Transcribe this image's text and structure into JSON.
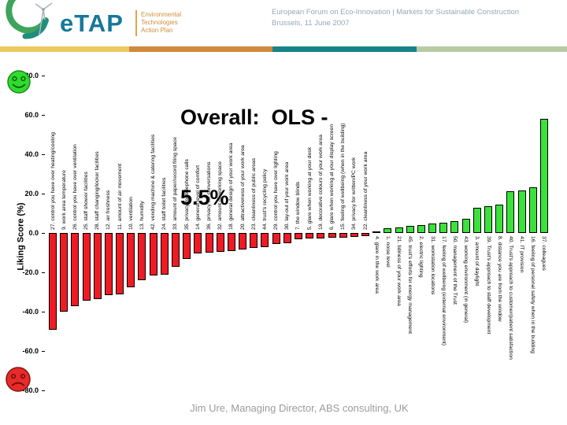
{
  "header": {
    "logo": {
      "wordmark": "eTAP",
      "tagline": [
        "Environmental",
        "Technologies",
        "Action Plan"
      ]
    },
    "event_line1": "European Forum on Eco-Innovation | Markets for Sustainable Construction",
    "event_line2": "Brussels, 11 June 2007",
    "stripe_segments": [
      {
        "color": "#EDC85E",
        "width": 164
      },
      {
        "color": "#D0893B",
        "width": 182
      },
      {
        "color": "#17828C",
        "width": 183
      },
      {
        "color": "#B6CBA4",
        "width": 191
      }
    ]
  },
  "title": {
    "line1": "Overall:  OLS -",
    "line2": "5.5%"
  },
  "footer": "Jim Ure, Managing Director, ABS consulting, UK",
  "chart_data": {
    "type": "bar",
    "title": "Overall:  OLS - 5.5%",
    "ylabel": "Liking Score (%)",
    "ylim": [
      -80,
      80
    ],
    "grid": false,
    "colors": {
      "negative": "#EE1B24",
      "positive": "#3BE23B"
    },
    "yticks": [
      {
        "label": "80.0",
        "value": 80
      },
      {
        "label": "60.0",
        "value": 60
      },
      {
        "label": "40.0",
        "value": 40
      },
      {
        "label": "20.0",
        "value": 20
      },
      {
        "label": "0.0",
        "value": 0
      },
      {
        "label": "-20.0",
        "value": -20
      },
      {
        "label": "-40.0",
        "value": -40
      },
      {
        "label": "-60.0",
        "value": -60
      },
      {
        "label": "-80.0",
        "value": -80
      }
    ],
    "bars": [
      {
        "label": "27. control you have over heating/cooling",
        "value": -49
      },
      {
        "label": "9. work area temperature",
        "value": -40
      },
      {
        "label": "26. control you have over ventilation",
        "value": -37
      },
      {
        "label": "25. staff shower facilities",
        "value": -34.5
      },
      {
        "label": "28. staff changing/locker facilities",
        "value": -33.5
      },
      {
        "label": "12. air freshness",
        "value": -31.5
      },
      {
        "label": "11. amount of air movement",
        "value": -31
      },
      {
        "label": "10. ventilation",
        "value": -27.5
      },
      {
        "label": "13. humidity",
        "value": -24
      },
      {
        "label": "42. vending machine & catering facilities",
        "value": -21.5
      },
      {
        "label": "24. staff toilet facilities",
        "value": -21
      },
      {
        "label": "33. amount of paper/record filing space",
        "value": -17
      },
      {
        "label": "35. privacy for telephone calls",
        "value": -13.3
      },
      {
        "label": "14. general level of comfort",
        "value": -10.2
      },
      {
        "label": "36. privacy for conversations",
        "value": -10
      },
      {
        "label": "32. amount of working space",
        "value": -9.5
      },
      {
        "label": "18. general design of your work area",
        "value": -9.2
      },
      {
        "label": "20. attractiveness of your work area",
        "value": -8.3
      },
      {
        "label": "23. cleanliness of public areas",
        "value": -7.6
      },
      {
        "label": "44. trust's recycling policy",
        "value": -7.2
      },
      {
        "label": "29. control you have over lighting",
        "value": -5.6
      },
      {
        "label": "30. lay-out of your work area",
        "value": -5
      },
      {
        "label": "7. the window blinds",
        "value": -3
      },
      {
        "label": "5. glare when working at your desk",
        "value": -2.8
      },
      {
        "label": "19. decorative colours of your work area",
        "value": -2.6
      },
      {
        "label": "6. glare when working at your display screen",
        "value": -2.4
      },
      {
        "label": "15. feeling of wellbeing (when in the building)",
        "value": -2.3
      },
      {
        "label": "34. privacy for written/PC work",
        "value": -2.1
      },
      {
        "label": "22. cleanliness of your work area",
        "value": -1.6
      },
      {
        "label": "4. glare in the work area",
        "value": 0.7
      },
      {
        "label": "1. noise level",
        "value": 2.3
      },
      {
        "label": "21. tidiness of your work area",
        "value": 2.7
      },
      {
        "label": "45. trust's efforts for energy management",
        "value": 3.7
      },
      {
        "label": "2. electric lighting",
        "value": 4.1
      },
      {
        "label": "31. workstation locations",
        "value": 4.7
      },
      {
        "label": "17. feeling of wellbeing (external environment)",
        "value": 5.2
      },
      {
        "label": "50. management of the Trust",
        "value": 6
      },
      {
        "label": "43. working environment (in general)",
        "value": 7.1
      },
      {
        "label": "3. amount of daylight",
        "value": 12.8
      },
      {
        "label": "39. Trust's approach to staff development",
        "value": 13.6
      },
      {
        "label": "8. distance you are from the window",
        "value": 14.5
      },
      {
        "label": "40. Trust's approach to customer/patient satisfaction",
        "value": 21.3
      },
      {
        "label": "41. IT provision",
        "value": 21.7
      },
      {
        "label": "16. feeling of personal safety when in the building",
        "value": 23.2
      },
      {
        "label": "37. colleagues",
        "value": 58
      }
    ]
  }
}
